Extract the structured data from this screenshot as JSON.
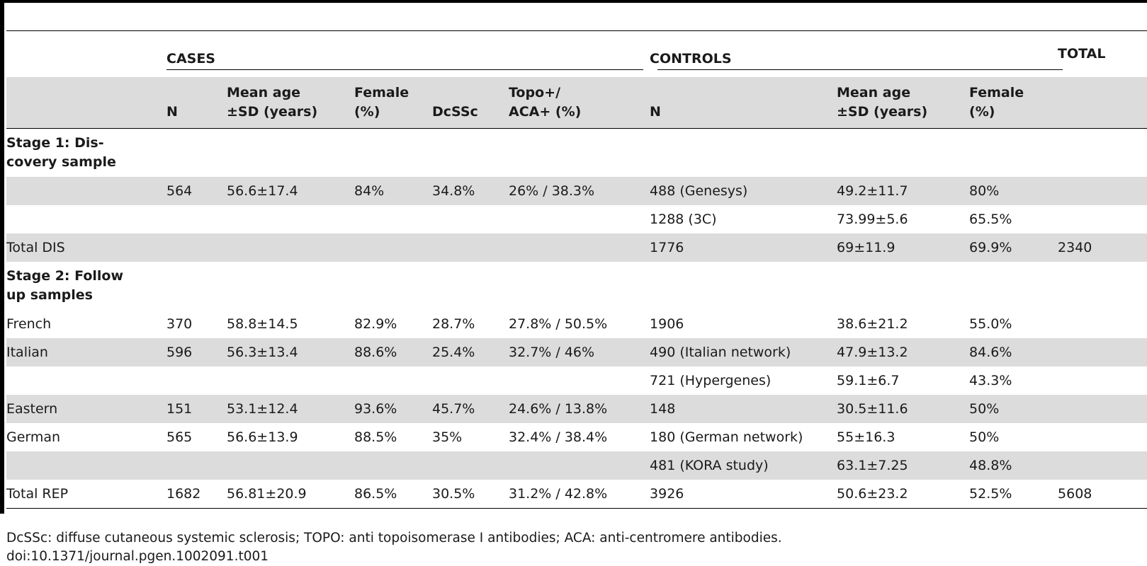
{
  "header": {
    "cases": "CASES",
    "controls": "CONTROLS",
    "total": "TOTAL"
  },
  "columns": {
    "n": "N",
    "mean_age_case_1": "Mean age",
    "mean_age_case_2": "±SD (years)",
    "female_case_1": "Female",
    "female_case_2": "(%)",
    "dcssc": "DcSSc",
    "topo_aca_1": "Topo+/",
    "topo_aca_2": "ACA+ (%)",
    "n_ctrl": "N",
    "mean_age_ctrl_1": "Mean age",
    "mean_age_ctrl_2": "±SD (years)",
    "female_ctrl_1": "Female",
    "female_ctrl_2": "(%)"
  },
  "sections": {
    "stage1_1": "Stage 1: Dis-",
    "stage1_2": "covery sample",
    "stage2_1": "Stage 2: Follow",
    "stage2_2": "up samples"
  },
  "rows": [
    {
      "label": "",
      "n": "564",
      "age": "56.6±17.4",
      "female": "84%",
      "dcssc": "34.8%",
      "topo": "26% / 38.3%",
      "ctrl_n": "488 (Genesys)",
      "ctrl_age": "49.2±11.7",
      "ctrl_female": "80%",
      "total": ""
    },
    {
      "label": "",
      "n": "",
      "age": "",
      "female": "",
      "dcssc": "",
      "topo": "",
      "ctrl_n": "1288 (3C)",
      "ctrl_age": "73.99±5.6",
      "ctrl_female": "65.5%",
      "total": ""
    },
    {
      "label": "Total DIS",
      "n": "",
      "age": "",
      "female": "",
      "dcssc": "",
      "topo": "",
      "ctrl_n": "1776",
      "ctrl_age": "69±11.9",
      "ctrl_female": "69.9%",
      "total": "2340"
    },
    {
      "label": "French",
      "n": "370",
      "age": "58.8±14.5",
      "female": "82.9%",
      "dcssc": "28.7%",
      "topo": "27.8% / 50.5%",
      "ctrl_n": "1906",
      "ctrl_age": "38.6±21.2",
      "ctrl_female": "55.0%",
      "total": ""
    },
    {
      "label": "Italian",
      "n": "596",
      "age": "56.3±13.4",
      "female": "88.6%",
      "dcssc": "25.4%",
      "topo": "32.7% / 46%",
      "ctrl_n": "490 (Italian network)",
      "ctrl_age": "47.9±13.2",
      "ctrl_female": "84.6%",
      "total": ""
    },
    {
      "label": "",
      "n": "",
      "age": "",
      "female": "",
      "dcssc": "",
      "topo": "",
      "ctrl_n": "721 (Hypergenes)",
      "ctrl_age": "59.1±6.7",
      "ctrl_female": "43.3%",
      "total": ""
    },
    {
      "label": "Eastern",
      "n": "151",
      "age": "53.1±12.4",
      "female": "93.6%",
      "dcssc": "45.7%",
      "topo": "24.6% / 13.8%",
      "ctrl_n": "148",
      "ctrl_age": "30.5±11.6",
      "ctrl_female": "50%",
      "total": ""
    },
    {
      "label": "German",
      "n": "565",
      "age": "56.6±13.9",
      "female": "88.5%",
      "dcssc": "35%",
      "topo": "32.4% / 38.4%",
      "ctrl_n": "180 (German network)",
      "ctrl_age": "55±16.3",
      "ctrl_female": "50%",
      "total": ""
    },
    {
      "label": "",
      "n": "",
      "age": "",
      "female": "",
      "dcssc": "",
      "topo": "",
      "ctrl_n": "481 (KORA study)",
      "ctrl_age": "63.1±7.25",
      "ctrl_female": "48.8%",
      "total": ""
    },
    {
      "label": "Total REP",
      "n": "1682",
      "age": "56.81±20.9",
      "female": "86.5%",
      "dcssc": "30.5%",
      "topo": "31.2% / 42.8%",
      "ctrl_n": "3926",
      "ctrl_age": "50.6±23.2",
      "ctrl_female": "52.5%",
      "total": "5608"
    }
  ],
  "footnote": {
    "abbreviations": "DcSSc: diffuse cutaneous systemic sclerosis; TOPO: anti topoisomerase I antibodies; ACA: anti-centromere antibodies.",
    "doi": "doi:10.1371/journal.pgen.1002091.t001"
  }
}
